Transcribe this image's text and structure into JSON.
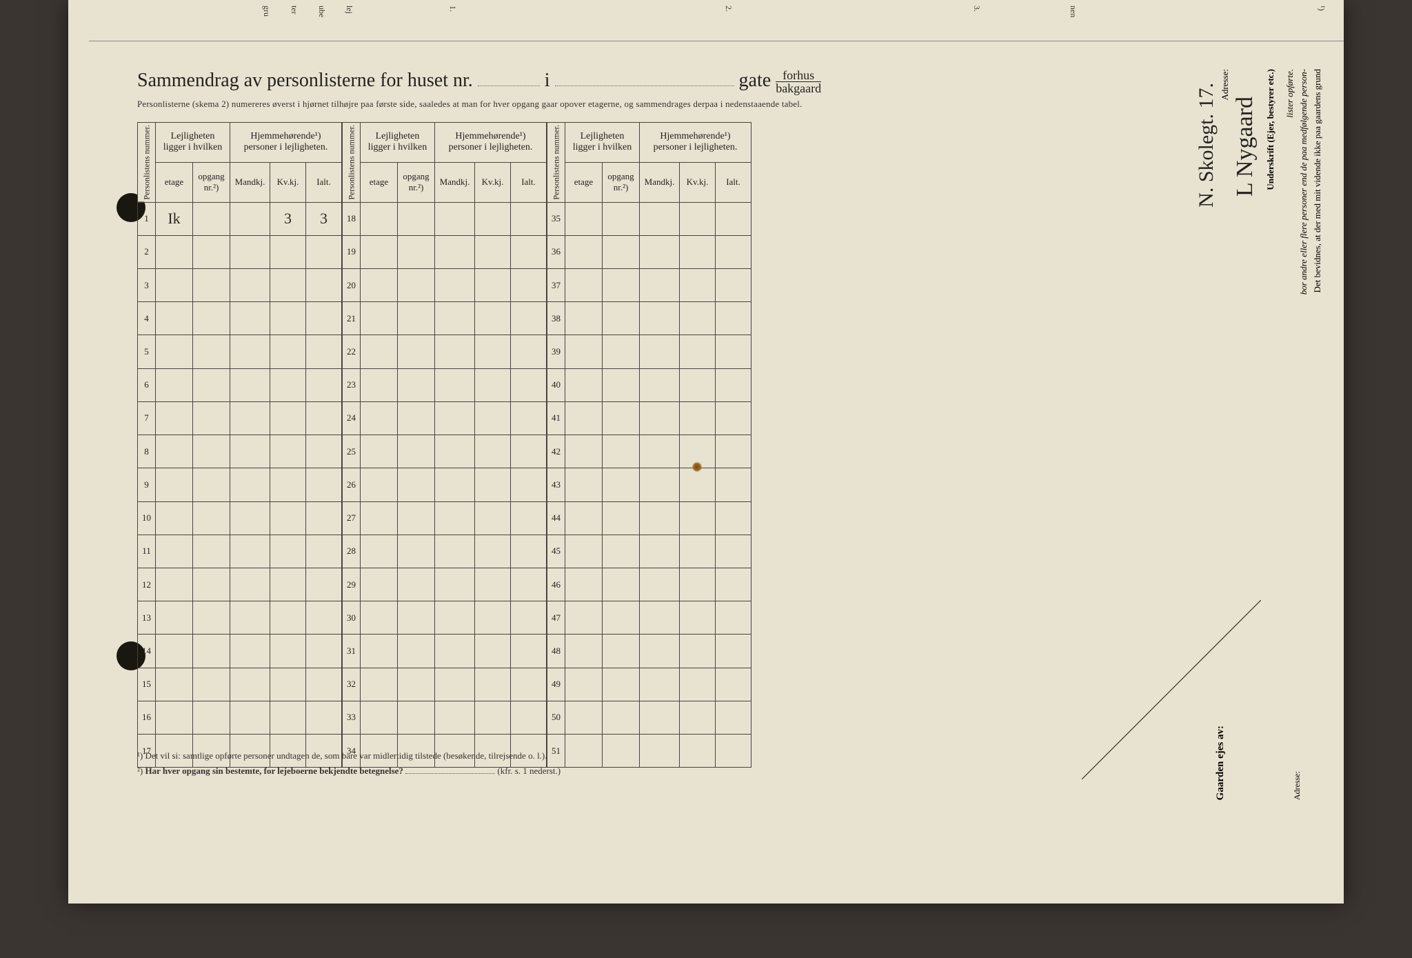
{
  "title": {
    "prefix": "Sammendrag av personlisterne for huset nr.",
    "mid": "i",
    "suffix": "gate",
    "fraction_top": "forhus",
    "fraction_bottom": "bakgaard"
  },
  "subtitle": "Personlisterne (skema 2) numereres øverst i hjørnet tilhøjre paa første side, saaledes at man for hver opgang gaar opover etagerne, og sammendrages derpaa i nedenstaaende tabel.",
  "headers": {
    "personlistens": "Personlistens nummer.",
    "lejligheten": "Lejligheten ligger i hvilken",
    "hjemmehorende": "Hjemmehørende¹) personer i lejligheten.",
    "etage": "etage",
    "opgang": "opgang nr.²)",
    "mandkj": "Mandkj.",
    "kvkj": "Kv.kj.",
    "ialt": "Ialt."
  },
  "blocks": [
    {
      "start": 1,
      "end": 17
    },
    {
      "start": 18,
      "end": 34
    },
    {
      "start": 35,
      "end": 51
    }
  ],
  "entries": {
    "1": {
      "etage": "Ik",
      "kvkj": "3",
      "ialt": "3"
    }
  },
  "footnotes": {
    "f1": "¹)  Det vil si: samtlige opførte personer undtagen de, som bare var midlertidig tilstede (besøkende, tilrejsende o. l.).",
    "f2_pre": "²)  ",
    "f2_bold": "Har hver opgang sin bestemte, for lejeboerne bekjendte betegnelse?",
    "f2_post": "(kfr. s. 1 nederst.)"
  },
  "declaration": {
    "l1": "Det bevidnes, at der med mit vidende ikke paa gaardens grund",
    "l2": "bor andre eller flere personer end de paa medfølgende        person-",
    "l3": "lister opførte.",
    "l4": "Underskrift (Ejer, bestyrer etc.)",
    "l5": "Adresse:"
  },
  "signatures": {
    "sig1": "L Nygaard",
    "sig2": "N. Skolegt. 17."
  },
  "owner_label": "Gaarden ejes av:",
  "addr_label": "Adresse:",
  "colors": {
    "paper": "#e8e2d0",
    "ink": "#222222",
    "border": "#444444",
    "bg": "#3a3530"
  }
}
